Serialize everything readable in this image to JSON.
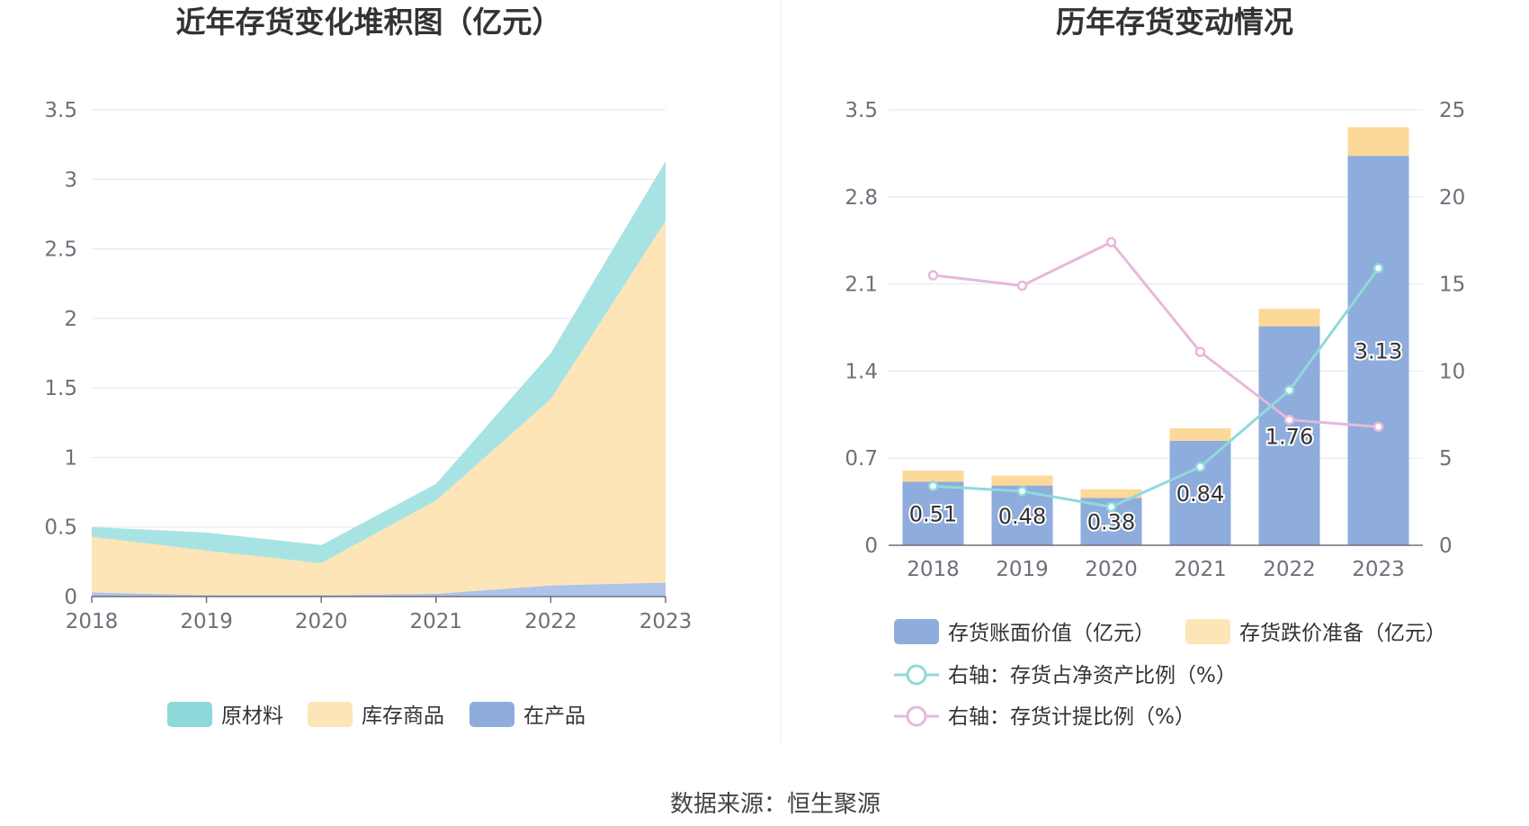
{
  "colors": {
    "raw_material": "#a8e3e3",
    "goods": "#fde5b7",
    "wip": "#aec3ea",
    "book_value": "#8eacdc",
    "impairment": "#fcd899",
    "ratio_net_assets": "#8fdadb",
    "provision_ratio": "#e7b8dc",
    "grid": "#e0e6f1",
    "axis": "#6e7079"
  },
  "source": "数据来源：恒生聚源",
  "chart_data": [
    {
      "type": "area",
      "stacked": true,
      "title": "近年存货变化堆积图（亿元）",
      "x": [
        "2018",
        "2019",
        "2020",
        "2021",
        "2022",
        "2023"
      ],
      "ylim": [
        0,
        3.5
      ],
      "yticks": [
        "0",
        "0.5",
        "1",
        "1.5",
        "2",
        "2.5",
        "3",
        "3.5"
      ],
      "grid": true,
      "legend_position": "bottom",
      "series": [
        {
          "name": "在产品",
          "values": [
            0.03,
            0.01,
            0.01,
            0.02,
            0.08,
            0.1
          ]
        },
        {
          "name": "库存商品",
          "values": [
            0.4,
            0.32,
            0.23,
            0.67,
            1.34,
            2.6
          ]
        },
        {
          "name": "原材料",
          "values": [
            0.07,
            0.13,
            0.13,
            0.12,
            0.33,
            0.43
          ]
        }
      ],
      "legend": [
        "原材料",
        "库存商品",
        "在产品"
      ]
    },
    {
      "type": "bar",
      "stacked": true,
      "title": "历年存货变动情况",
      "x": [
        "2018",
        "2019",
        "2020",
        "2021",
        "2022",
        "2023"
      ],
      "ylim": [
        0,
        3.5
      ],
      "yticks": [
        "0",
        "0.7",
        "1.4",
        "2.1",
        "2.8",
        "3.5"
      ],
      "y2lim": [
        0,
        25
      ],
      "y2ticks": [
        "0",
        "5",
        "10",
        "15",
        "20",
        "25"
      ],
      "grid": true,
      "legend_position": "bottom",
      "series": [
        {
          "name": "存货账面价值（亿元）",
          "type": "bar",
          "values": [
            0.51,
            0.48,
            0.38,
            0.84,
            1.76,
            3.13
          ],
          "labels": [
            "0.51",
            "0.48",
            "0.38",
            "0.84",
            "1.76",
            "3.13"
          ]
        },
        {
          "name": "存货跌价准备（亿元）",
          "type": "bar",
          "values": [
            0.09,
            0.08,
            0.07,
            0.1,
            0.14,
            0.23
          ]
        },
        {
          "name": "右轴：存货占净资产比例（%）",
          "type": "line",
          "axis": "right",
          "values": [
            3.4,
            3.1,
            2.2,
            4.5,
            8.9,
            15.9
          ]
        },
        {
          "name": "右轴：存货计提比例（%）",
          "type": "line",
          "axis": "right",
          "values": [
            15.5,
            14.9,
            17.4,
            11.1,
            7.2,
            6.8
          ]
        }
      ]
    }
  ]
}
